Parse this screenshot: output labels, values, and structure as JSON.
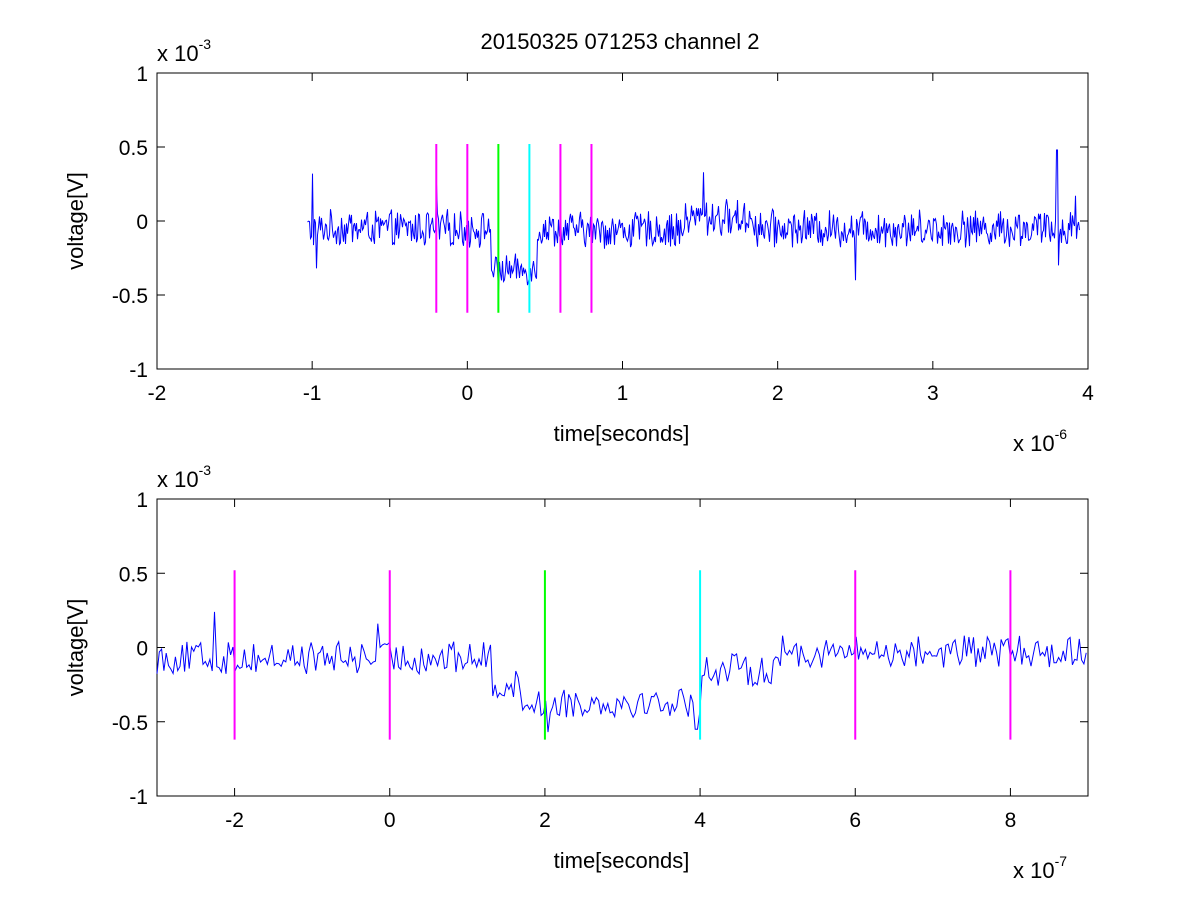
{
  "title": "20150325 071253 channel 2",
  "chart_data": [
    {
      "type": "line",
      "title": "20150325 071253 channel 2",
      "xlabel": "time[seconds]",
      "ylabel": "voltage[V]",
      "x_multiplier_base": "x 10",
      "x_multiplier_exp": "-6",
      "y_multiplier_base": "x 10",
      "y_multiplier_exp": "-3",
      "xlim": [
        -2,
        4
      ],
      "ylim": [
        -1,
        1
      ],
      "x_ticks": [
        -2,
        -1,
        0,
        1,
        2,
        3,
        4
      ],
      "x_tick_labels": [
        "-2",
        "-1",
        "0",
        "1",
        "2",
        "3",
        "4"
      ],
      "y_ticks": [
        -1,
        -0.5,
        0,
        0.5,
        1
      ],
      "y_tick_labels": [
        "-1",
        "-0.5",
        "0",
        "0.5",
        "1"
      ],
      "grid": false,
      "signal": {
        "color": "#0000ff",
        "x_start": -1.03,
        "x_end": 3.95,
        "levels": [
          {
            "from": -1.03,
            "to": 0.15,
            "mean": -0.05,
            "amp": 0.11
          },
          {
            "from": 0.15,
            "to": 0.45,
            "mean": -0.33,
            "amp": 0.09
          },
          {
            "from": 0.45,
            "to": 1.4,
            "mean": -0.06,
            "amp": 0.11
          },
          {
            "from": 1.4,
            "to": 1.85,
            "mean": 0.02,
            "amp": 0.11
          },
          {
            "from": 1.85,
            "to": 3.95,
            "mean": -0.05,
            "amp": 0.11
          }
        ],
        "spikes": [
          {
            "x": -1.0,
            "y": 0.32
          },
          {
            "x": -0.97,
            "y": -0.32
          },
          {
            "x": -0.2,
            "y": 0.25
          },
          {
            "x": 0.2,
            "y": -0.49
          },
          {
            "x": 1.52,
            "y": 0.33
          },
          {
            "x": 2.5,
            "y": -0.4
          },
          {
            "x": 3.8,
            "y": 0.48
          },
          {
            "x": 3.81,
            "y": -0.3
          },
          {
            "x": 3.92,
            "y": 0.17
          }
        ]
      },
      "markers": [
        {
          "x": -0.2,
          "y0": -0.62,
          "y1": 0.52,
          "color": "#ff00ff"
        },
        {
          "x": 0.0,
          "y0": -0.62,
          "y1": 0.52,
          "color": "#ff00ff"
        },
        {
          "x": 0.2,
          "y0": -0.62,
          "y1": 0.52,
          "color": "#00ff00"
        },
        {
          "x": 0.4,
          "y0": -0.62,
          "y1": 0.52,
          "color": "#00ffff"
        },
        {
          "x": 0.6,
          "y0": -0.62,
          "y1": 0.52,
          "color": "#ff00ff"
        },
        {
          "x": 0.8,
          "y0": -0.62,
          "y1": 0.52,
          "color": "#ff00ff"
        }
      ]
    },
    {
      "type": "line",
      "title": "",
      "xlabel": "time[seconds]",
      "ylabel": "voltage[V]",
      "x_multiplier_base": "x 10",
      "x_multiplier_exp": "-7",
      "y_multiplier_base": "x 10",
      "y_multiplier_exp": "-3",
      "xlim": [
        -3,
        9
      ],
      "ylim": [
        -1,
        1
      ],
      "x_ticks": [
        -2,
        0,
        2,
        4,
        6,
        8
      ],
      "x_tick_labels": [
        "-2",
        "0",
        "2",
        "4",
        "6",
        "8"
      ],
      "y_ticks": [
        -1,
        -0.5,
        0,
        0.5,
        1
      ],
      "y_tick_labels": [
        "-1",
        "-0.5",
        "0",
        "0.5",
        "1"
      ],
      "grid": false,
      "signal": {
        "color": "#0000ff",
        "x_start": -3.0,
        "x_end": 9.0,
        "levels": [
          {
            "from": -3.0,
            "to": 1.3,
            "mean": -0.07,
            "amp": 0.11
          },
          {
            "from": 1.3,
            "to": 1.7,
            "mean": -0.25,
            "amp": 0.1
          },
          {
            "from": 1.7,
            "to": 4.0,
            "mean": -0.37,
            "amp": 0.1
          },
          {
            "from": 4.0,
            "to": 5.0,
            "mean": -0.15,
            "amp": 0.11
          },
          {
            "from": 5.0,
            "to": 9.0,
            "mean": -0.03,
            "amp": 0.11
          }
        ],
        "spikes": [
          {
            "x": -2.25,
            "y": 0.24
          },
          {
            "x": -0.15,
            "y": 0.16
          },
          {
            "x": 2.05,
            "y": -0.57
          },
          {
            "x": 3.95,
            "y": -0.55
          }
        ]
      },
      "markers": [
        {
          "x": -2.0,
          "y0": -0.62,
          "y1": 0.52,
          "color": "#ff00ff"
        },
        {
          "x": 0.0,
          "y0": -0.62,
          "y1": 0.52,
          "color": "#ff00ff"
        },
        {
          "x": 2.0,
          "y0": -0.62,
          "y1": 0.52,
          "color": "#00ff00"
        },
        {
          "x": 4.0,
          "y0": -0.62,
          "y1": 0.52,
          "color": "#00ffff"
        },
        {
          "x": 6.0,
          "y0": -0.62,
          "y1": 0.52,
          "color": "#ff00ff"
        },
        {
          "x": 8.0,
          "y0": -0.62,
          "y1": 0.52,
          "color": "#ff00ff"
        }
      ]
    }
  ]
}
